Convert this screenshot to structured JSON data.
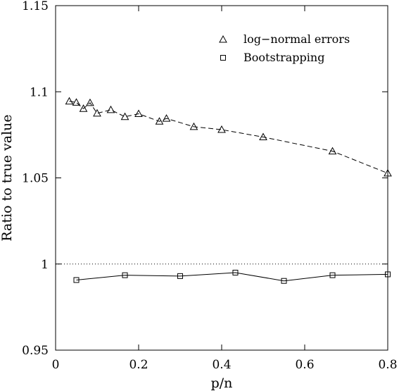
{
  "chart_data": {
    "type": "line",
    "title": "",
    "xlabel": "p/n",
    "ylabel": "Ratio to true value",
    "xlim": [
      0,
      0.8
    ],
    "ylim": [
      0.95,
      1.15
    ],
    "xticks": [
      0,
      0.2,
      0.4,
      0.6,
      0.8
    ],
    "xtick_labels": [
      "0",
      "0.2",
      "0.4",
      "0.6",
      "0.8"
    ],
    "yticks": [
      0.95,
      1,
      1.05,
      1.1,
      1.15
    ],
    "ytick_labels": [
      "0.95",
      "1",
      "1.05",
      "1.1",
      "1.15"
    ],
    "grid": false,
    "legend": "top-right",
    "reference_line": {
      "y": 1.0,
      "style": "dotted"
    },
    "series": [
      {
        "name": "log−normal errors",
        "marker": "triangle",
        "line_style": "dashed",
        "x": [
          0.033,
          0.05,
          0.067,
          0.083,
          0.1,
          0.133,
          0.167,
          0.2,
          0.25,
          0.267,
          0.333,
          0.4,
          0.5,
          0.667,
          0.8
        ],
        "y": [
          1.0945,
          1.0938,
          1.0902,
          1.0936,
          1.0875,
          1.0895,
          1.0855,
          1.0872,
          1.0828,
          1.0845,
          1.0797,
          1.078,
          1.0737,
          1.0655,
          1.0527
        ]
      },
      {
        "name": "Bootstrapping",
        "marker": "square",
        "line_style": "solid",
        "x": [
          0.05,
          0.167,
          0.3,
          0.433,
          0.55,
          0.667,
          0.8
        ],
        "y": [
          0.9907,
          0.9935,
          0.993,
          0.995,
          0.9902,
          0.9935,
          0.994
        ]
      }
    ]
  }
}
